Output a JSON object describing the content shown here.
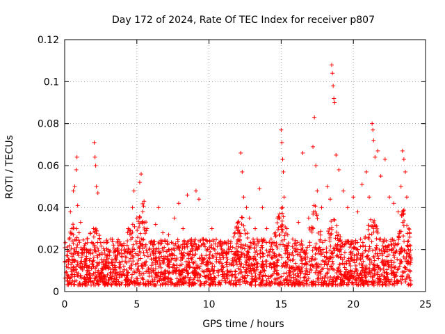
{
  "chart_data": {
    "type": "scatter",
    "title": "Day 172 of 2024, Rate Of TEC Index for receiver p807",
    "xlabel": "GPS time / hours",
    "ylabel": "ROTI / TECUs",
    "xlim": [
      0,
      25
    ],
    "ylim": [
      0,
      0.12
    ],
    "x_ticks": [
      0,
      5,
      10,
      15,
      20,
      25
    ],
    "x_tick_labels": [
      "0",
      "5",
      "10",
      "15",
      "20",
      "25"
    ],
    "y_ticks": [
      0,
      0.02,
      0.04,
      0.06,
      0.08,
      0.1,
      0.12
    ],
    "y_tick_labels": [
      "0",
      "0.02",
      "0.04",
      "0.06",
      "0.08",
      "0.1",
      "0.12"
    ],
    "grid": true,
    "marker": "+",
    "color": "#ff0000",
    "series": [
      {
        "name": "ROTI",
        "points": [
          [
            0.1,
            0.009
          ],
          [
            0.2,
            0.017
          ],
          [
            0.3,
            0.025
          ],
          [
            0.4,
            0.038
          ],
          [
            0.5,
            0.03
          ],
          [
            0.6,
            0.048
          ],
          [
            0.7,
            0.05
          ],
          [
            0.8,
            0.058
          ],
          [
            0.85,
            0.064
          ],
          [
            0.9,
            0.041
          ],
          [
            1.0,
            0.028
          ],
          [
            1.1,
            0.033
          ],
          [
            1.2,
            0.02
          ],
          [
            1.4,
            0.015
          ],
          [
            1.6,
            0.012
          ],
          [
            1.8,
            0.018
          ],
          [
            2.0,
            0.03
          ],
          [
            2.05,
            0.071
          ],
          [
            2.1,
            0.064
          ],
          [
            2.15,
            0.06
          ],
          [
            2.2,
            0.05
          ],
          [
            2.3,
            0.047
          ],
          [
            2.4,
            0.025
          ],
          [
            2.6,
            0.01
          ],
          [
            2.8,
            0.013
          ],
          [
            3.0,
            0.02
          ],
          [
            3.2,
            0.025
          ],
          [
            3.5,
            0.015
          ],
          [
            3.8,
            0.018
          ],
          [
            4.1,
            0.022
          ],
          [
            4.4,
            0.03
          ],
          [
            4.7,
            0.04
          ],
          [
            4.8,
            0.048
          ],
          [
            5.0,
            0.035
          ],
          [
            5.2,
            0.052
          ],
          [
            5.3,
            0.056
          ],
          [
            5.5,
            0.043
          ],
          [
            5.7,
            0.03
          ],
          [
            6.0,
            0.024
          ],
          [
            6.3,
            0.032
          ],
          [
            6.5,
            0.04
          ],
          [
            6.8,
            0.028
          ],
          [
            7.2,
            0.027
          ],
          [
            7.6,
            0.035
          ],
          [
            7.9,
            0.042
          ],
          [
            8.2,
            0.03
          ],
          [
            8.5,
            0.046
          ],
          [
            8.8,
            0.022
          ],
          [
            9.1,
            0.048
          ],
          [
            9.3,
            0.044
          ],
          [
            9.6,
            0.025
          ],
          [
            9.9,
            0.02
          ],
          [
            10.2,
            0.03
          ],
          [
            10.6,
            0.018
          ],
          [
            11.0,
            0.016
          ],
          [
            11.4,
            0.02
          ],
          [
            11.8,
            0.028
          ],
          [
            12.0,
            0.033
          ],
          [
            12.2,
            0.066
          ],
          [
            12.3,
            0.057
          ],
          [
            12.4,
            0.045
          ],
          [
            12.6,
            0.04
          ],
          [
            12.8,
            0.035
          ],
          [
            13.2,
            0.03
          ],
          [
            13.5,
            0.049
          ],
          [
            13.7,
            0.04
          ],
          [
            14.0,
            0.03
          ],
          [
            14.3,
            0.025
          ],
          [
            14.6,
            0.028
          ],
          [
            14.9,
            0.035
          ],
          [
            15.0,
            0.077
          ],
          [
            15.05,
            0.071
          ],
          [
            15.1,
            0.063
          ],
          [
            15.15,
            0.057
          ],
          [
            15.2,
            0.045
          ],
          [
            15.4,
            0.03
          ],
          [
            15.8,
            0.025
          ],
          [
            16.2,
            0.033
          ],
          [
            16.5,
            0.066
          ],
          [
            16.9,
            0.035
          ],
          [
            17.2,
            0.069
          ],
          [
            17.3,
            0.083
          ],
          [
            17.4,
            0.06
          ],
          [
            17.5,
            0.048
          ],
          [
            17.8,
            0.04
          ],
          [
            18.2,
            0.05
          ],
          [
            18.4,
            0.044
          ],
          [
            18.5,
            0.108
          ],
          [
            18.55,
            0.104
          ],
          [
            18.6,
            0.098
          ],
          [
            18.65,
            0.092
          ],
          [
            18.7,
            0.09
          ],
          [
            18.8,
            0.065
          ],
          [
            19.0,
            0.058
          ],
          [
            19.3,
            0.048
          ],
          [
            19.6,
            0.04
          ],
          [
            20.0,
            0.045
          ],
          [
            20.3,
            0.038
          ],
          [
            20.6,
            0.051
          ],
          [
            20.9,
            0.057
          ],
          [
            21.1,
            0.045
          ],
          [
            21.3,
            0.08
          ],
          [
            21.35,
            0.077
          ],
          [
            21.4,
            0.072
          ],
          [
            21.5,
            0.064
          ],
          [
            21.7,
            0.067
          ],
          [
            21.9,
            0.055
          ],
          [
            22.2,
            0.063
          ],
          [
            22.5,
            0.045
          ],
          [
            22.8,
            0.042
          ],
          [
            23.1,
            0.038
          ],
          [
            23.3,
            0.05
          ],
          [
            23.4,
            0.067
          ],
          [
            23.5,
            0.063
          ],
          [
            23.6,
            0.057
          ],
          [
            23.7,
            0.045
          ],
          [
            23.9,
            0.028
          ],
          [
            24.0,
            0.015
          ]
        ],
        "noise": "dense band 0.003–0.03 across 0–24 h"
      }
    ]
  }
}
